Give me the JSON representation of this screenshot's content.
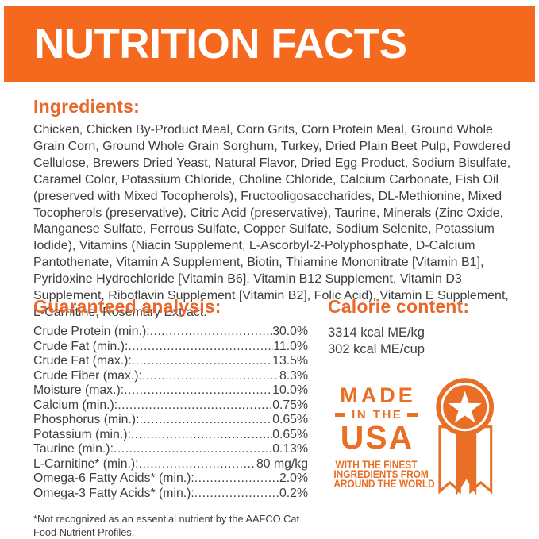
{
  "banner": {
    "title": "NUTRITION FACTS"
  },
  "colors": {
    "banner_orange": "#F4691D",
    "heading_orange": "#E8682B",
    "badge_orange": "#E96F26",
    "body_text": "#3E3E3E"
  },
  "ingredients": {
    "heading": "Ingredients:",
    "text": "Chicken, Chicken By-Product Meal, Corn Grits, Corn Protein Meal, Ground Whole Grain Corn, Ground Whole Grain Sorghum, Turkey, Dried Plain Beet Pulp, Powdered Cellulose, Brewers Dried Yeast, Natural Flavor, Dried Egg Product, Sodium Bisulfate, Caramel Color, Potassium Chloride, Choline Chloride, Calcium Carbonate, Fish Oil (preserved with Mixed Tocopherols), Fructooligosaccharides, DL-Methionine, Mixed Tocopherols (preservative), Citric Acid (preservative), Taurine, Minerals (Zinc Oxide, Manganese Sulfate, Ferrous Sulfate, Copper Sulfate, Sodium Selenite, Potassium Iodide), Vitamins (Niacin Supplement, L-Ascorbyl-2-Polyphosphate, D-Calcium Pantothenate, Vitamin A Supplement, Biotin, Thiamine Mononitrate [Vitamin B1], Pyridoxine Hydrochloride [Vitamin B6], Vitamin B12 Supplement, Vitamin D3 Supplement, Riboflavin Supplement [Vitamin B2], Folic Acid), Vitamin E Supplement, L-Carnitine, Rosemary Extract."
  },
  "analysis": {
    "heading": "Guaranteed analysis:",
    "rows": [
      {
        "label": "Crude Protein (min.):",
        "value": "30.0%"
      },
      {
        "label": "Crude Fat (min.):",
        "value": "11.0%"
      },
      {
        "label": "Crude Fat (max.):",
        "value": "13.5%"
      },
      {
        "label": "Crude Fiber (max.):",
        "value": "8.3%"
      },
      {
        "label": "Moisture (max.):",
        "value": "10.0%"
      },
      {
        "label": "Calcium (min.):",
        "value": "0.75%"
      },
      {
        "label": "Phosphorus (min.):",
        "value": "0.65%"
      },
      {
        "label": "Potassium (min.):",
        "value": "0.65%"
      },
      {
        "label": "Taurine (min.):",
        "value": "0.13%"
      },
      {
        "label": "L-Carnitine* (min.):",
        "value": "80 mg/kg"
      },
      {
        "label": "Omega-6 Fatty Acids* (min.):",
        "value": "2.0%"
      },
      {
        "label": "Omega-3 Fatty Acids* (min.):",
        "value": "0.2%"
      }
    ],
    "footnote": "*Not recognized as an essential nutrient by the AAFCO Cat Food Nutrient Profiles."
  },
  "calories": {
    "heading": "Calorie content:",
    "lines": [
      "3314 kcal ME/kg",
      "302 kcal ME/cup"
    ]
  },
  "badge": {
    "line_made": "MADE",
    "line_in_the": "IN THE",
    "line_usa": "USA",
    "tagline": [
      "WITH THE FINEST",
      "INGREDIENTS FROM",
      "AROUND THE WORLD"
    ],
    "medal_icon": "star-ribbon-medal-icon"
  }
}
